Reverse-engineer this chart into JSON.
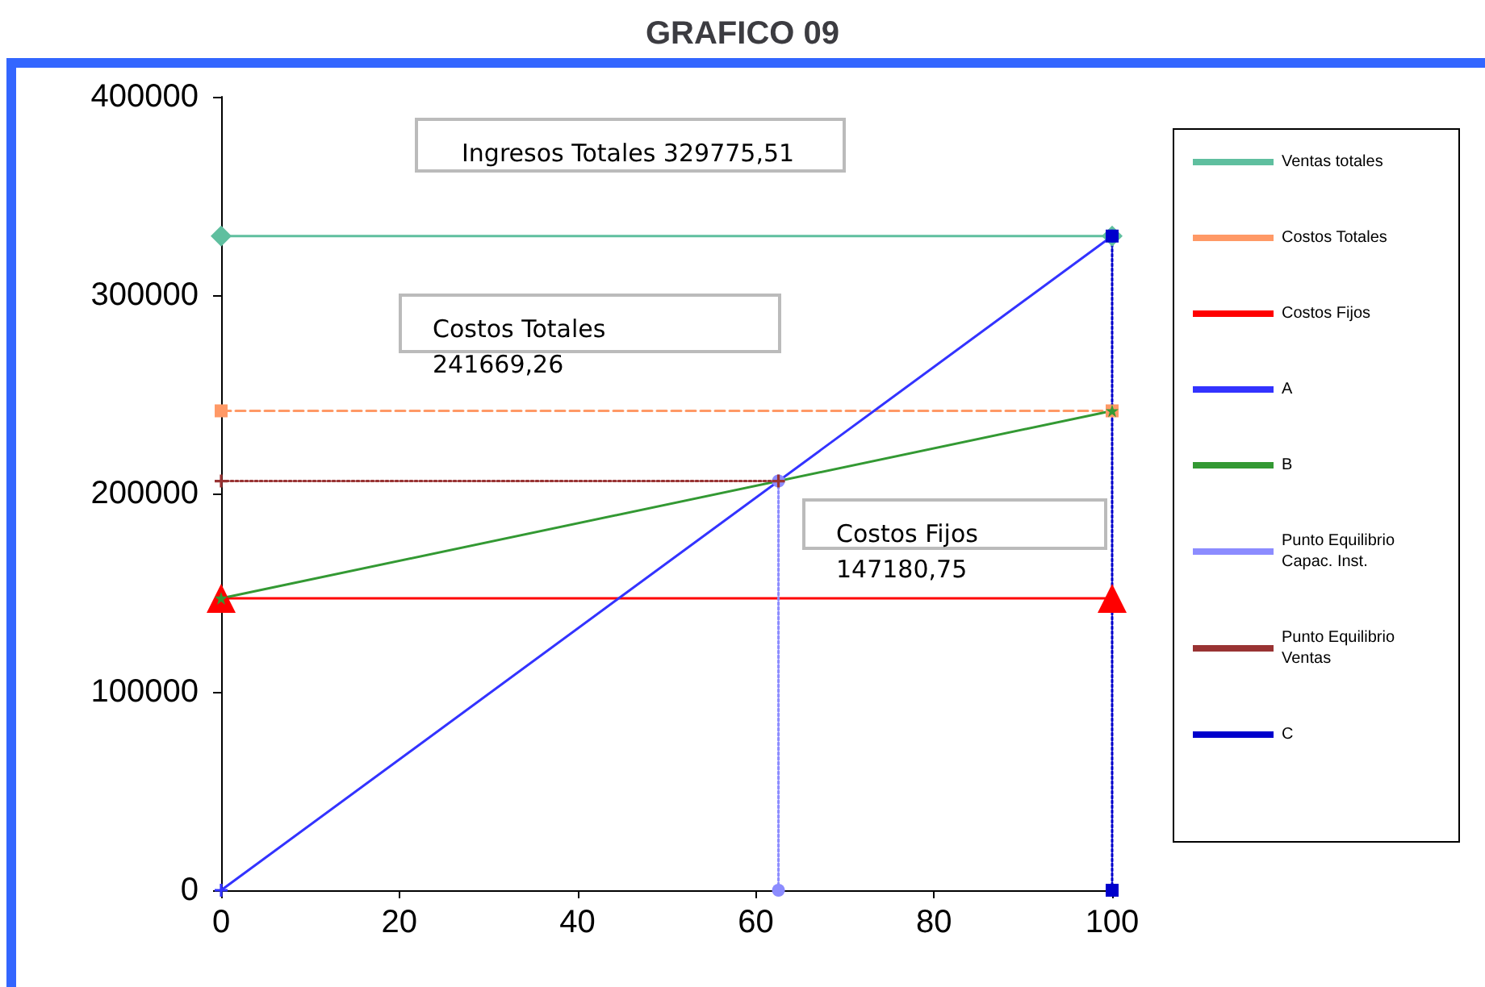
{
  "chart_data": {
    "type": "line",
    "title": "GRAFICO 09",
    "xlim": [
      0,
      100
    ],
    "xticks": [
      0,
      20,
      40,
      60,
      80,
      100
    ],
    "ylim": [
      0,
      400000
    ],
    "yticks": [
      0,
      100000,
      200000,
      300000,
      400000
    ],
    "grid": false,
    "legend": "right",
    "annotations": [
      "Ingresos Totales 329775,51",
      "Costos Totales 241669,26",
      "Costos Fijos 147180,75"
    ],
    "series": [
      {
        "name": "Ventas totales",
        "color": "#5fbf9f",
        "marker": "diamond",
        "line_style": "solid",
        "x": [
          0,
          100
        ],
        "values": [
          329775.51,
          329775.51
        ]
      },
      {
        "name": "Costos Totales",
        "color": "#ff9966",
        "marker": "square",
        "line_style": "dashed",
        "x": [
          0,
          100
        ],
        "values": [
          241669.26,
          241669.26
        ]
      },
      {
        "name": "Costos Fijos",
        "color": "#ff0000",
        "marker": "triangle",
        "line_style": "solid",
        "x": [
          0,
          100
        ],
        "values": [
          147180.75,
          147180.75
        ]
      },
      {
        "name": "A",
        "color": "#3333ff",
        "marker": "cross",
        "line_style": "solid",
        "x": [
          0,
          100
        ],
        "values": [
          0,
          329775.51
        ]
      },
      {
        "name": "B",
        "color": "#339933",
        "marker": "star",
        "line_style": "solid",
        "x": [
          0,
          100
        ],
        "values": [
          147180.75,
          241669.26
        ]
      },
      {
        "name": "Punto Equilibrio Capac. Inst.",
        "color": "#8c8cff",
        "marker": "circle",
        "line_style": "dotted",
        "x": [
          62.55,
          62.55
        ],
        "values": [
          0,
          206290
        ]
      },
      {
        "name": "Punto Equilibrio Ventas",
        "color": "#993333",
        "marker": "cross",
        "line_style": "dotted",
        "x": [
          0,
          62.55
        ],
        "values": [
          206290,
          206290
        ]
      },
      {
        "name": "C",
        "color": "#0000cc",
        "marker": "square",
        "line_style": "dotted",
        "x": [
          100,
          100
        ],
        "values": [
          0,
          329775.51
        ]
      }
    ]
  }
}
